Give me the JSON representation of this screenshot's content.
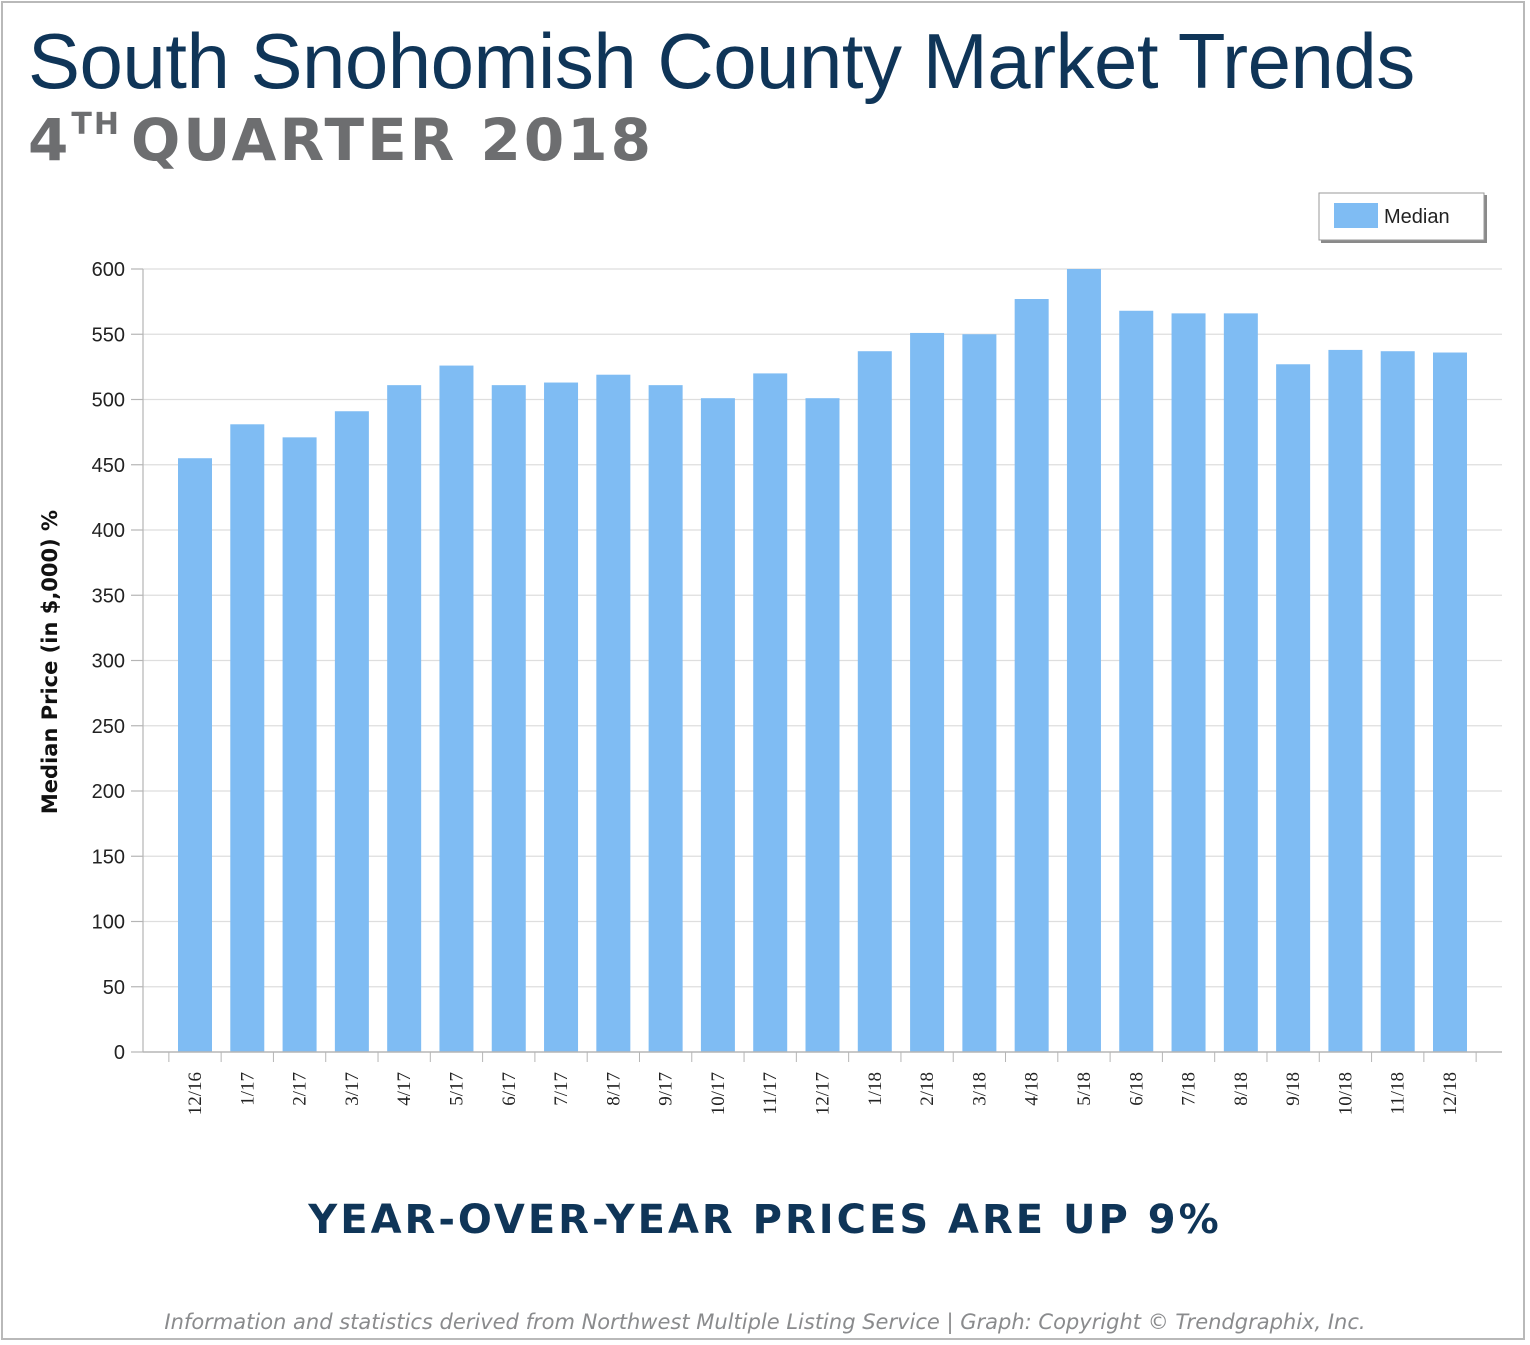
{
  "header": {
    "title": "South Snohomish County Market Trends",
    "subtitle_ordinal": "4",
    "subtitle_suffix": "TH",
    "subtitle_rest": "QUARTER 2018"
  },
  "headline": "YEAR-OVER-YEAR PRICES ARE UP 9%",
  "footer": "Information and statistics derived from Northwest Multiple Listing Service  |  Graph: Copyright © Trendgraphix, Inc.",
  "chart_data": {
    "type": "bar",
    "categories": [
      "12/16",
      "1/17",
      "2/17",
      "3/17",
      "4/17",
      "5/17",
      "6/17",
      "7/17",
      "8/17",
      "9/17",
      "10/17",
      "11/17",
      "12/17",
      "1/18",
      "2/18",
      "3/18",
      "4/18",
      "5/18",
      "6/18",
      "7/18",
      "8/18",
      "9/18",
      "10/18",
      "11/18",
      "12/18"
    ],
    "series": [
      {
        "name": "Median",
        "color": "#7fbcf3",
        "values": [
          455,
          481,
          471,
          491,
          511,
          526,
          511,
          513,
          519,
          511,
          501,
          520,
          501,
          537,
          551,
          550,
          577,
          600,
          568,
          566,
          566,
          527,
          538,
          537,
          536
        ]
      }
    ],
    "ylabel": "Median Price (in $,000) %",
    "xlabel": "",
    "ylim": [
      0,
      600
    ],
    "yticks": [
      0,
      50,
      100,
      150,
      200,
      250,
      300,
      350,
      400,
      450,
      500,
      550,
      600
    ],
    "grid": true,
    "legend_position": "top-right"
  }
}
